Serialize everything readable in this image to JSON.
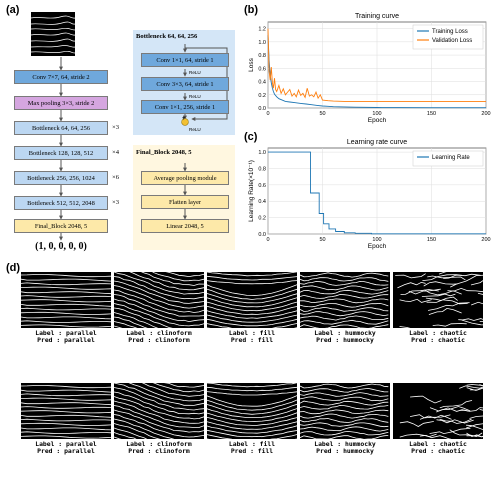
{
  "panels": {
    "a": "(a)",
    "b": "(b)",
    "c": "(c)",
    "d": "(d)"
  },
  "architecture": {
    "main_blocks": [
      {
        "label": "Conv 7×7, 64, stride 2"
      },
      {
        "label": "Max pooling 3×3, stride 2"
      },
      {
        "label": "Bottleneck 64, 64, 256",
        "mult": "×3"
      },
      {
        "label": "Bottleneck 128, 128, 512",
        "mult": "×4"
      },
      {
        "label": "Bottleneck 256, 256, 1024",
        "mult": "×6"
      },
      {
        "label": "Bottleneck 512, 512, 2048",
        "mult": "×3"
      },
      {
        "label": "Final_Block 2048, 5"
      }
    ],
    "output_vector": "(1, 0, 0, 0, 0)",
    "bottleneck_detail": {
      "title": "Bottleneck 64, 64, 256",
      "blocks": [
        "Conv 1×1, 64, stride 1",
        "Conv 3×3, 64, stride 1",
        "Conv 1×1, 256, stride 1"
      ],
      "relu": "ReLU",
      "plus": "+"
    },
    "final_detail": {
      "title": "Final_Block 2048, 5",
      "blocks": [
        "Average pooling module",
        "Flatten layer",
        "Linear 2048, 5"
      ]
    }
  },
  "chart_data": [
    {
      "type": "line",
      "title": "Training curve",
      "xlabel": "Epoch",
      "ylabel": "Loss",
      "xlim": [
        0,
        200
      ],
      "ylim": [
        0,
        1.3
      ],
      "xticks": [
        "0",
        "50",
        "100",
        "150",
        "200"
      ],
      "yticks": [
        "0.0",
        "0.2",
        "0.4",
        "0.6",
        "0.8",
        "1.0",
        "1.2"
      ],
      "grid": true,
      "legend": "top-right",
      "series": [
        {
          "name": "Training Loss",
          "color": "#1f77b4",
          "x": [
            0,
            1,
            2,
            3,
            4,
            5,
            6,
            8,
            10,
            13,
            16,
            20,
            25,
            30,
            35,
            40,
            45,
            50,
            55,
            60,
            80,
            100,
            120,
            150,
            200
          ],
          "y": [
            1.1,
            0.72,
            0.5,
            0.38,
            0.3,
            0.25,
            0.21,
            0.17,
            0.14,
            0.12,
            0.1,
            0.09,
            0.08,
            0.07,
            0.06,
            0.05,
            0.04,
            0.03,
            0.025,
            0.02,
            0.012,
            0.008,
            0.006,
            0.005,
            0.004
          ]
        },
        {
          "name": "Validation Loss",
          "color": "#ff7f0e",
          "x": [
            0,
            1,
            2,
            3,
            4,
            5,
            6,
            7,
            8,
            10,
            12,
            14,
            16,
            18,
            20,
            22,
            24,
            26,
            28,
            30,
            32,
            34,
            36,
            38,
            40,
            42,
            44,
            46,
            48,
            50,
            55,
            60,
            70,
            80,
            100,
            120,
            150,
            200
          ],
          "y": [
            1.2,
            0.55,
            0.42,
            0.62,
            0.38,
            0.3,
            0.45,
            0.28,
            0.25,
            0.34,
            0.22,
            0.29,
            0.2,
            0.24,
            0.28,
            0.18,
            0.22,
            0.17,
            0.27,
            0.19,
            0.22,
            0.16,
            0.3,
            0.18,
            0.2,
            0.17,
            0.24,
            0.15,
            0.2,
            0.12,
            0.11,
            0.105,
            0.1,
            0.1,
            0.1,
            0.1,
            0.1,
            0.1
          ]
        }
      ]
    },
    {
      "type": "line",
      "title": "Learning rate curve",
      "xlabel": "Epoch",
      "ylabel": "Learning Rate(×10⁻¹)",
      "xlim": [
        0,
        200
      ],
      "ylim": [
        0,
        1.05
      ],
      "xticks": [
        "0",
        "50",
        "100",
        "150",
        "200"
      ],
      "yticks": [
        "0.0",
        "0.2",
        "0.4",
        "0.6",
        "0.8",
        "1.0"
      ],
      "grid": true,
      "legend": "top-right",
      "series": [
        {
          "name": "Learning Rate",
          "color": "#1f77b4",
          "x": [
            0,
            39,
            39,
            47,
            47,
            51,
            51,
            56,
            56,
            62,
            62,
            70,
            70,
            80,
            80,
            95,
            95,
            200
          ],
          "y": [
            1.0,
            1.0,
            0.5,
            0.5,
            0.25,
            0.25,
            0.125,
            0.125,
            0.0625,
            0.0625,
            0.03,
            0.03,
            0.015,
            0.015,
            0.008,
            0.008,
            0.002,
            0.002
          ]
        }
      ]
    }
  ],
  "samples": {
    "rows": [
      [
        {
          "label": "Label : parallel",
          "pred": "Pred : parallel",
          "pattern": "parallel"
        },
        {
          "label": "Label : clinoform",
          "pred": "Pred : clinoform",
          "pattern": "clinoform"
        },
        {
          "label": "Label : fill",
          "pred": "Pred : fill",
          "pattern": "fill"
        },
        {
          "label": "Label : hummocky",
          "pred": "Pred : hummocky",
          "pattern": "hummocky"
        },
        {
          "label": "Label : chaotic",
          "pred": "Pred : chaotic",
          "pattern": "chaotic"
        }
      ],
      [
        {
          "label": "Label : parallel",
          "pred": "Pred : parallel",
          "pattern": "parallel"
        },
        {
          "label": "Label : clinoform",
          "pred": "Pred : clinoform",
          "pattern": "clinoform"
        },
        {
          "label": "Label : fill",
          "pred": "Pred : fill",
          "pattern": "fill"
        },
        {
          "label": "Label : hummocky",
          "pred": "Pred : hummocky",
          "pattern": "hummocky"
        },
        {
          "label": "Label : chaotic",
          "pred": "Pred : chaotic",
          "pattern": "chaotic"
        }
      ]
    ]
  }
}
